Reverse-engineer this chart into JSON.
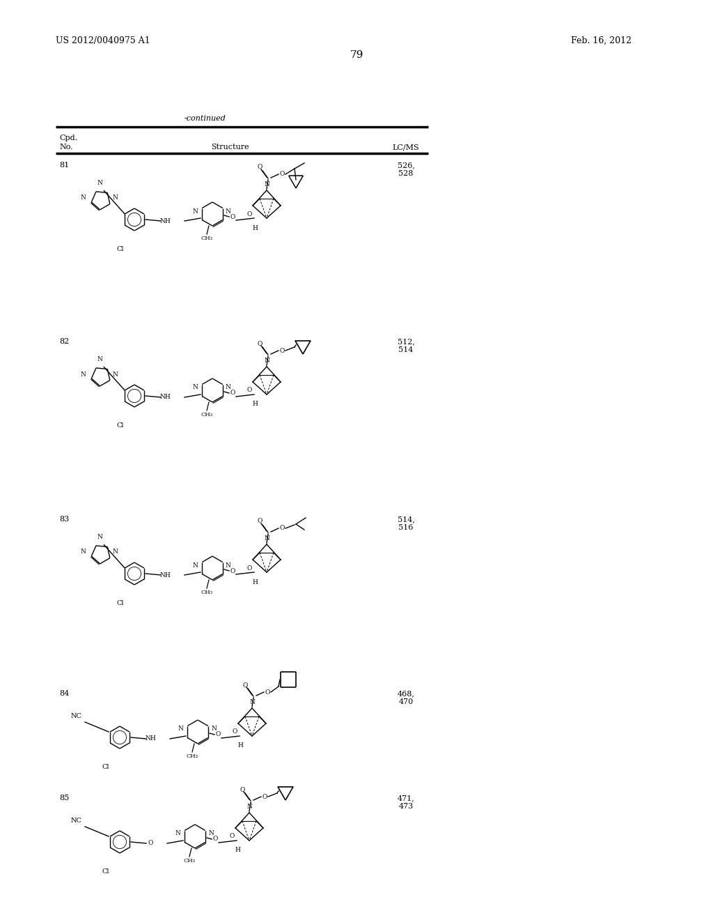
{
  "patent_number": "US 2012/0040975 A1",
  "date": "Feb. 16, 2012",
  "page_number": "79",
  "continued_label": "-continued",
  "cpd_label": "Cpd.",
  "no_label": "No.",
  "structure_label": "Structure",
  "lcms_label": "LC/MS",
  "compounds": [
    {
      "no": "81",
      "lcms": "526,\n528",
      "has_triazole": true,
      "ester_type": "cyclopropyl_methyl",
      "nh_link": true,
      "cn_sub": false
    },
    {
      "no": "82",
      "lcms": "512,\n514",
      "has_triazole": true,
      "ester_type": "cyclopropyl",
      "nh_link": true,
      "cn_sub": false
    },
    {
      "no": "83",
      "lcms": "514,\n516",
      "has_triazole": true,
      "ester_type": "isopropyl",
      "nh_link": true,
      "cn_sub": false
    },
    {
      "no": "84",
      "lcms": "468,\n470",
      "has_triazole": false,
      "ester_type": "cyclobutyl",
      "nh_link": true,
      "cn_sub": true
    },
    {
      "no": "85",
      "lcms": "471,\n473",
      "has_triazole": false,
      "ester_type": "cyclopropyl",
      "nh_link": false,
      "cn_sub": true
    }
  ]
}
